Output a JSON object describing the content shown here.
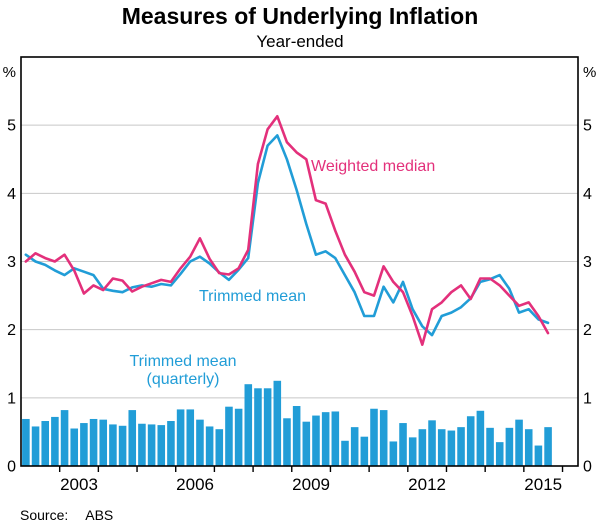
{
  "header": {
    "title": "Measures of Underlying Inflation",
    "subtitle": "Year-ended"
  },
  "footer": {
    "source_label": "Source:",
    "source_value": "ABS"
  },
  "colors": {
    "weighted_median": "#e3307b",
    "trimmed_mean": "#219dd7",
    "bars": "#219dd7",
    "grid": "#c8c8c8",
    "axis": "#000000"
  },
  "chart_data": {
    "type": "mixed-bar-line",
    "title": "Measures of Underlying Inflation",
    "subtitle": "Year-ended",
    "y_unit": "%",
    "ylim": [
      0,
      6
    ],
    "yticks": [
      0,
      1,
      2,
      3,
      4,
      5
    ],
    "grid": true,
    "x_start_year": 2002,
    "x_end_year_fraction": 2016.4,
    "quarters": 55,
    "xtick_label_years": [
      2003,
      2006,
      2009,
      2012,
      2015
    ],
    "annotations": {
      "weighted_median": "Weighted median",
      "trimmed_mean": "Trimmed mean",
      "trimmed_mean_quarterly_line1": "Trimmed mean",
      "trimmed_mean_quarterly_line2": "(quarterly)"
    },
    "series": [
      {
        "id": "trimmed_mean_quarterly",
        "name": "Trimmed mean (quarterly)",
        "type": "bar",
        "color": "#219dd7",
        "values": [
          0.69,
          0.58,
          0.66,
          0.72,
          0.82,
          0.55,
          0.63,
          0.69,
          0.68,
          0.61,
          0.59,
          0.82,
          0.62,
          0.61,
          0.6,
          0.66,
          0.83,
          0.83,
          0.68,
          0.58,
          0.54,
          0.87,
          0.84,
          1.2,
          1.14,
          1.14,
          1.25,
          0.7,
          0.88,
          0.65,
          0.74,
          0.79,
          0.8,
          0.37,
          0.57,
          0.43,
          0.84,
          0.82,
          0.36,
          0.63,
          0.42,
          0.54,
          0.67,
          0.54,
          0.52,
          0.57,
          0.73,
          0.81,
          0.56,
          0.35,
          0.56,
          0.68,
          0.54,
          0.3,
          0.57
        ]
      },
      {
        "id": "trimmed_mean",
        "name": "Trimmed mean",
        "type": "line",
        "color": "#219dd7",
        "values": [
          3.1,
          3.0,
          2.95,
          2.87,
          2.8,
          2.9,
          2.85,
          2.8,
          2.6,
          2.57,
          2.55,
          2.62,
          2.65,
          2.63,
          2.67,
          2.65,
          2.82,
          3.0,
          3.07,
          2.97,
          2.84,
          2.73,
          2.88,
          3.05,
          4.15,
          4.7,
          4.85,
          4.5,
          4.05,
          3.55,
          3.1,
          3.15,
          3.05,
          2.8,
          2.55,
          2.2,
          2.2,
          2.63,
          2.4,
          2.7,
          2.3,
          2.05,
          1.92,
          2.2,
          2.25,
          2.33,
          2.46,
          2.7,
          2.74,
          2.8,
          2.6,
          2.25,
          2.3,
          2.15,
          2.1
        ]
      },
      {
        "id": "weighted_median",
        "name": "Weighted median",
        "type": "line",
        "color": "#e3307b",
        "values": [
          3.0,
          3.12,
          3.05,
          3.0,
          3.1,
          2.87,
          2.53,
          2.65,
          2.58,
          2.75,
          2.72,
          2.56,
          2.63,
          2.68,
          2.73,
          2.7,
          2.9,
          3.07,
          3.34,
          3.04,
          2.83,
          2.81,
          2.9,
          3.17,
          4.43,
          4.94,
          5.13,
          4.75,
          4.6,
          4.5,
          3.9,
          3.85,
          3.45,
          3.1,
          2.85,
          2.55,
          2.5,
          2.93,
          2.7,
          2.55,
          2.2,
          1.78,
          2.3,
          2.4,
          2.55,
          2.65,
          2.45,
          2.75,
          2.75,
          2.65,
          2.5,
          2.35,
          2.4,
          2.2,
          1.95
        ]
      }
    ]
  }
}
